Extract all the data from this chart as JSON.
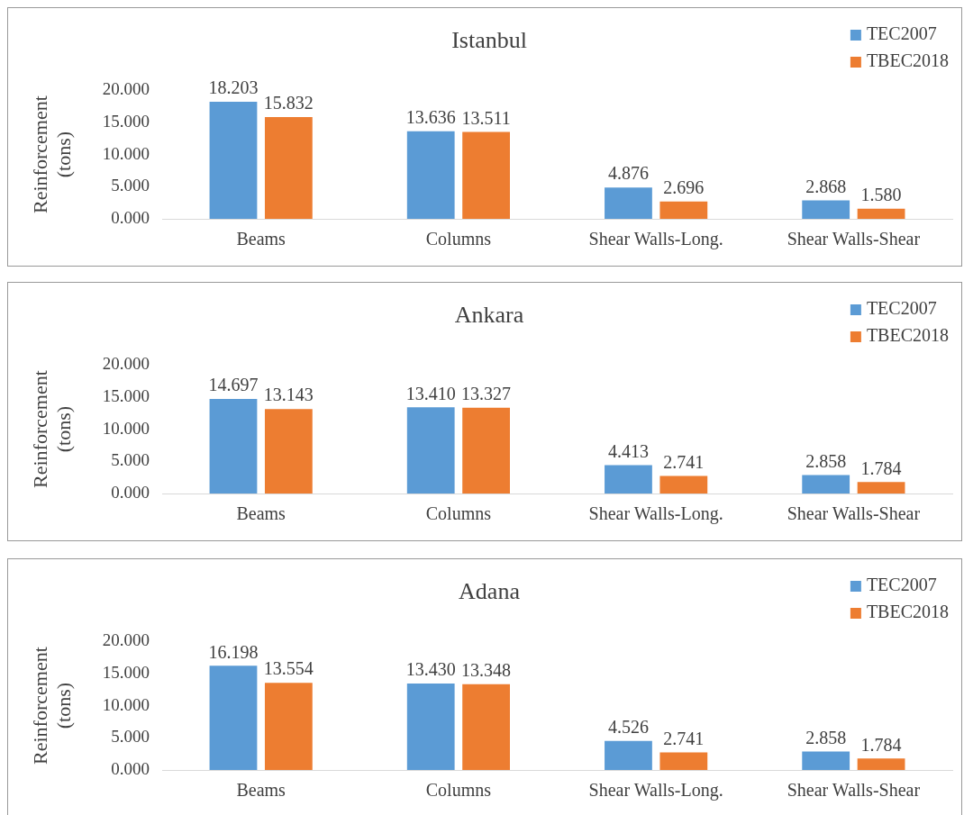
{
  "chart_data": [
    {
      "type": "bar",
      "title": "Istanbul",
      "ylabel": "Reinforcement (tons)",
      "categories": [
        "Beams",
        "Columns",
        "Shear Walls-Long.",
        "Shear Walls-Shear"
      ],
      "series": [
        {
          "name": "TEC2007",
          "color": "#5b9bd5",
          "values": [
            18.203,
            13.636,
            4.876,
            2.868
          ]
        },
        {
          "name": "TBEC2018",
          "color": "#ed7d31",
          "values": [
            15.832,
            13.511,
            2.696,
            1.58
          ]
        }
      ],
      "ylim": [
        0,
        20
      ],
      "yticks": [
        {
          "value": 0,
          "label": "0.000"
        },
        {
          "value": 5,
          "label": "5.000"
        },
        {
          "value": 10,
          "label": "10.000"
        },
        {
          "value": 15,
          "label": "15.000"
        },
        {
          "value": 20,
          "label": "20.000"
        }
      ],
      "value_labels": [
        [
          "18.203",
          "13.636",
          "4.876",
          "2.868"
        ],
        [
          "15.832",
          "13.511",
          "2.696",
          "1.580"
        ]
      ],
      "legend": "top right"
    },
    {
      "type": "bar",
      "title": "Ankara",
      "ylabel": "Reinforcement (tons)",
      "categories": [
        "Beams",
        "Columns",
        "Shear Walls-Long.",
        "Shear Walls-Shear"
      ],
      "series": [
        {
          "name": "TEC2007",
          "color": "#5b9bd5",
          "values": [
            14.697,
            13.41,
            4.413,
            2.858
          ]
        },
        {
          "name": "TBEC2018",
          "color": "#ed7d31",
          "values": [
            13.143,
            13.327,
            2.741,
            1.784
          ]
        }
      ],
      "ylim": [
        0,
        20
      ],
      "yticks": [
        {
          "value": 0,
          "label": "0.000"
        },
        {
          "value": 5,
          "label": "5.000"
        },
        {
          "value": 10,
          "label": "10.000"
        },
        {
          "value": 15,
          "label": "15.000"
        },
        {
          "value": 20,
          "label": "20.000"
        }
      ],
      "value_labels": [
        [
          "14.697",
          "13.410",
          "4.413",
          "2.858"
        ],
        [
          "13.143",
          "13.327",
          "2.741",
          "1.784"
        ]
      ],
      "legend": "top right"
    },
    {
      "type": "bar",
      "title": "Adana",
      "ylabel": "Reinforcement (tons)",
      "categories": [
        "Beams",
        "Columns",
        "Shear Walls-Long.",
        "Shear Walls-Shear"
      ],
      "series": [
        {
          "name": "TEC2007",
          "color": "#5b9bd5",
          "values": [
            16.198,
            13.43,
            4.526,
            2.858
          ]
        },
        {
          "name": "TBEC2018",
          "color": "#ed7d31",
          "values": [
            13.554,
            13.348,
            2.741,
            1.784
          ]
        }
      ],
      "ylim": [
        0,
        20
      ],
      "yticks": [
        {
          "value": 0,
          "label": "0.000"
        },
        {
          "value": 5,
          "label": "5.000"
        },
        {
          "value": 10,
          "label": "10.000"
        },
        {
          "value": 15,
          "label": "15.000"
        },
        {
          "value": 20,
          "label": "20.000"
        }
      ],
      "value_labels": [
        [
          "16.198",
          "13.430",
          "4.526",
          "2.858"
        ],
        [
          "13.554",
          "13.348",
          "2.741",
          "1.784"
        ]
      ],
      "legend": "top right"
    }
  ]
}
